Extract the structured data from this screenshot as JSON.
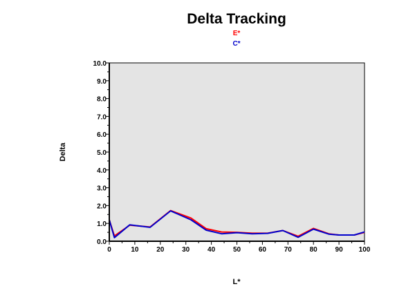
{
  "chart_data": {
    "type": "line",
    "title": "Delta Tracking",
    "xlabel": "L*",
    "ylabel": "Delta",
    "xlim": [
      0,
      100
    ],
    "ylim": [
      0,
      10
    ],
    "x_ticks": [
      "0",
      "10",
      "20",
      "30",
      "40",
      "50",
      "60",
      "70",
      "80",
      "90",
      "100"
    ],
    "y_ticks": [
      "0.0",
      "1.0",
      "2.0",
      "3.0",
      "4.0",
      "5.0",
      "6.0",
      "7.0",
      "8.0",
      "9.0",
      "10.0"
    ],
    "grid": false,
    "plot_background": "#e4e4e4",
    "legend_position": "top-center",
    "series": [
      {
        "name": "E*",
        "color": "#ff0000",
        "x": [
          0,
          2,
          8,
          16,
          24,
          32,
          38,
          44,
          50,
          56,
          62,
          68,
          74,
          80,
          86,
          90,
          96,
          100
        ],
        "y": [
          1.2,
          0.3,
          0.9,
          0.8,
          1.72,
          1.3,
          0.7,
          0.52,
          0.5,
          0.45,
          0.45,
          0.6,
          0.28,
          0.72,
          0.42,
          0.35,
          0.35,
          0.5
        ]
      },
      {
        "name": "C*",
        "color": "#0000cc",
        "x": [
          0,
          2,
          8,
          16,
          24,
          32,
          38,
          44,
          50,
          56,
          62,
          68,
          74,
          80,
          86,
          90,
          96,
          100
        ],
        "y": [
          1.2,
          0.2,
          0.92,
          0.78,
          1.7,
          1.2,
          0.62,
          0.42,
          0.48,
          0.42,
          0.44,
          0.6,
          0.22,
          0.68,
          0.4,
          0.35,
          0.35,
          0.52
        ]
      }
    ]
  }
}
